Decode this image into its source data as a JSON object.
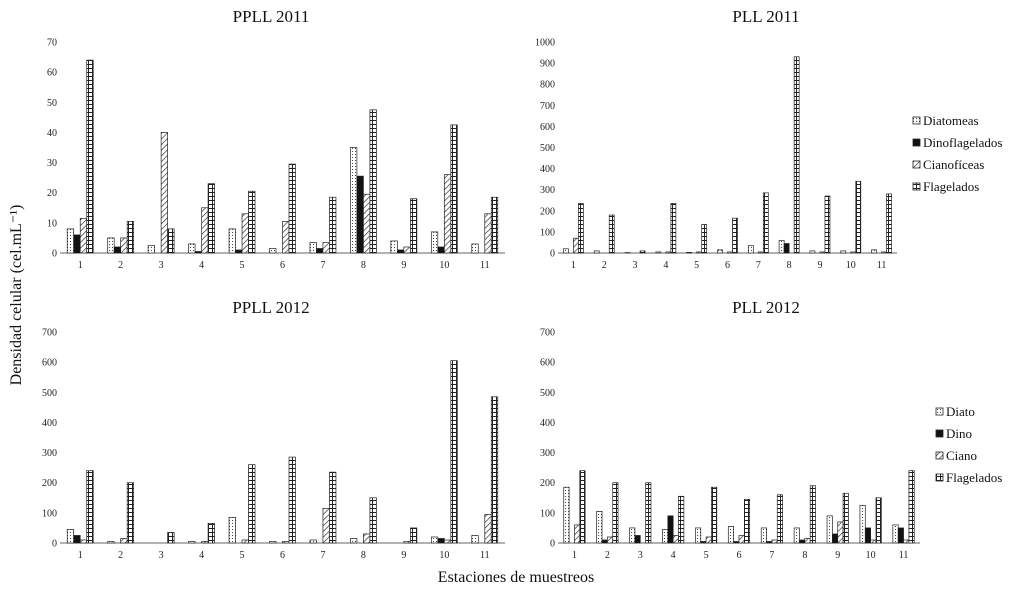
{
  "ylabel": "Densidad celular (cel.mL⁻¹)",
  "xlabel": "Estaciones de muestreos",
  "chart_data": [
    {
      "type": "bar",
      "title": "PPLL 2011",
      "categories": [
        "1",
        "2",
        "3",
        "4",
        "5",
        "6",
        "7",
        "8",
        "9",
        "10",
        "11"
      ],
      "ylim": [
        0,
        70
      ],
      "yticks": [
        0,
        10,
        20,
        30,
        40,
        50,
        60,
        70
      ],
      "series": [
        {
          "name": "Diatomeas",
          "values": [
            8,
            5,
            2.5,
            3,
            8,
            1.5,
            3.5,
            35,
            4,
            7,
            3
          ]
        },
        {
          "name": "Dinoflagelados",
          "values": [
            6,
            2,
            0,
            0.5,
            1,
            0,
            1.5,
            25.5,
            1,
            2,
            0
          ]
        },
        {
          "name": "Cianofíceas",
          "values": [
            11.5,
            5,
            40,
            15,
            13,
            10.5,
            3.5,
            19.5,
            2,
            26,
            13
          ]
        },
        {
          "name": "Flagelados",
          "values": [
            64,
            10.5,
            8,
            23,
            20.5,
            29.5,
            18.5,
            47.5,
            18,
            42.5,
            18.5
          ]
        }
      ]
    },
    {
      "type": "bar",
      "title": "PLL 2011",
      "categories": [
        "1",
        "2",
        "3",
        "4",
        "5",
        "6",
        "7",
        "8",
        "9",
        "10",
        "11"
      ],
      "ylim": [
        0,
        1000
      ],
      "yticks": [
        0,
        100,
        200,
        300,
        400,
        500,
        600,
        700,
        800,
        900,
        1000
      ],
      "series": [
        {
          "name": "Diatomeas",
          "values": [
            20,
            10,
            2,
            5,
            3,
            15,
            35,
            60,
            10,
            10,
            15
          ]
        },
        {
          "name": "Dinoflagelados",
          "values": [
            0,
            0,
            0,
            0,
            0,
            0,
            0,
            45,
            0,
            0,
            0
          ]
        },
        {
          "name": "Cianofíceas",
          "values": [
            70,
            0,
            0,
            5,
            5,
            5,
            5,
            0,
            5,
            5,
            5
          ]
        },
        {
          "name": "Flagelados",
          "values": [
            235,
            180,
            10,
            235,
            135,
            165,
            285,
            930,
            270,
            340,
            280
          ]
        }
      ]
    },
    {
      "type": "bar",
      "title": "PPLL 2012",
      "categories": [
        "1",
        "2",
        "3",
        "4",
        "5",
        "6",
        "7",
        "8",
        "9",
        "10",
        "11"
      ],
      "ylim": [
        0,
        700
      ],
      "yticks": [
        0,
        100,
        200,
        300,
        400,
        500,
        600,
        700
      ],
      "series": [
        {
          "name": "Diatomeas",
          "values": [
            45,
            5,
            0,
            5,
            85,
            5,
            10,
            15,
            0,
            20,
            25
          ]
        },
        {
          "name": "Dinoflagelados",
          "values": [
            25,
            0,
            0,
            0,
            0,
            0,
            0,
            0,
            0,
            15,
            0
          ]
        },
        {
          "name": "Cianofíceas",
          "values": [
            10,
            15,
            0,
            5,
            10,
            5,
            115,
            30,
            5,
            10,
            95
          ]
        },
        {
          "name": "Flagelados",
          "values": [
            240,
            200,
            35,
            65,
            260,
            285,
            235,
            150,
            50,
            605,
            485
          ]
        }
      ]
    },
    {
      "type": "bar",
      "title": "PLL 2012",
      "categories": [
        "1",
        "2",
        "3",
        "4",
        "5",
        "6",
        "7",
        "8",
        "9",
        "10",
        "11"
      ],
      "ylim": [
        0,
        700
      ],
      "yticks": [
        0,
        100,
        200,
        300,
        400,
        500,
        600,
        700
      ],
      "series": [
        {
          "name": "Diato",
          "values": [
            185,
            105,
            50,
            45,
            50,
            55,
            50,
            50,
            90,
            125,
            60
          ]
        },
        {
          "name": "Dino",
          "values": [
            0,
            10,
            25,
            90,
            5,
            5,
            5,
            10,
            30,
            50,
            50
          ]
        },
        {
          "name": "Ciano",
          "values": [
            60,
            20,
            0,
            25,
            20,
            25,
            10,
            15,
            70,
            10,
            10
          ]
        },
        {
          "name": "Flagelados",
          "values": [
            240,
            200,
            200,
            155,
            185,
            145,
            160,
            190,
            165,
            150,
            240
          ]
        }
      ]
    }
  ]
}
